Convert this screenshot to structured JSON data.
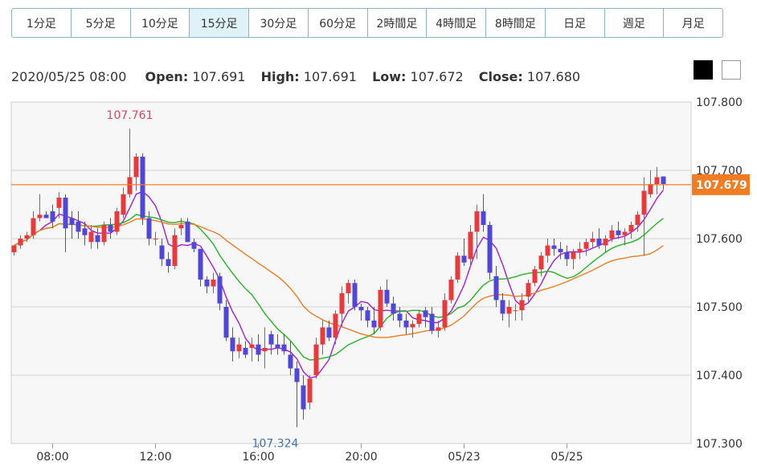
{
  "tabs": [
    {
      "label": "1分足"
    },
    {
      "label": "5分足"
    },
    {
      "label": "10分足"
    },
    {
      "label": "15分足",
      "active": true
    },
    {
      "label": "30分足"
    },
    {
      "label": "60分足"
    },
    {
      "label": "2時間足"
    },
    {
      "label": "4時間足"
    },
    {
      "label": "8時間足"
    },
    {
      "label": "日足"
    },
    {
      "label": "週足"
    },
    {
      "label": "月足"
    }
  ],
  "ohlc": {
    "datetime": "2020/05/25 08:00",
    "open_label": "Open:",
    "open": "107.691",
    "high_label": "High:",
    "high": "107.691",
    "low_label": "Low:",
    "low": "107.672",
    "close_label": "Close:",
    "close": "107.680"
  },
  "theme_buttons": [
    {
      "name": "dark",
      "color": "#000000"
    },
    {
      "name": "light",
      "color": "#ffffff"
    }
  ],
  "colors": {
    "up": "#e8393b",
    "down": "#5046d8",
    "ma_short": "#a21fd0",
    "ma_mid": "#27b327",
    "ma_long": "#f07c23",
    "current_price": "#f07c23",
    "background": "#f7f7f7",
    "grid": "#d0d0d0",
    "high_marker": "#d9465f",
    "low_marker": "#4a6fa8"
  },
  "chart_data": {
    "type": "candlestick",
    "ylim": [
      107.3,
      107.8
    ],
    "y_ticks": [
      "107.800",
      "107.700",
      "107.600",
      "107.500",
      "107.400",
      "107.300"
    ],
    "x_ticks": [
      {
        "label": "08:00",
        "index": 6
      },
      {
        "label": "12:00",
        "index": 22
      },
      {
        "label": "16:00",
        "index": 38
      },
      {
        "label": "20:00",
        "index": 54
      },
      {
        "label": "05/23",
        "index": 70
      },
      {
        "label": "05/25",
        "index": 86
      }
    ],
    "current_price": "107.679",
    "high_marker": {
      "label": "107.761",
      "index": 18,
      "value": 107.761
    },
    "low_marker": {
      "label": "107.324",
      "index": 40,
      "value": 107.324
    },
    "candles": [
      [
        107.58,
        107.59,
        107.575,
        107.59
      ],
      [
        107.59,
        107.605,
        107.585,
        107.6
      ],
      [
        107.6,
        107.61,
        107.595,
        107.605
      ],
      [
        107.605,
        107.64,
        107.6,
        107.63
      ],
      [
        107.63,
        107.665,
        107.625,
        107.635
      ],
      [
        107.635,
        107.64,
        107.63,
        107.63
      ],
      [
        107.64,
        107.65,
        107.615,
        107.625
      ],
      [
        107.645,
        107.668,
        107.63,
        107.66
      ],
      [
        107.66,
        107.665,
        107.58,
        107.615
      ],
      [
        107.63,
        107.64,
        107.6,
        107.62
      ],
      [
        107.625,
        107.64,
        107.6,
        107.61
      ],
      [
        107.615,
        107.625,
        107.59,
        107.605
      ],
      [
        107.595,
        107.62,
        107.585,
        107.61
      ],
      [
        107.605,
        107.615,
        107.585,
        107.595
      ],
      [
        107.595,
        107.625,
        107.59,
        107.62
      ],
      [
        107.62,
        107.63,
        107.6,
        107.61
      ],
      [
        107.61,
        107.645,
        107.605,
        107.64
      ],
      [
        107.635,
        107.675,
        107.63,
        107.665
      ],
      [
        107.665,
        107.761,
        107.66,
        107.69
      ],
      [
        107.69,
        107.725,
        107.67,
        107.72
      ],
      [
        107.72,
        107.725,
        107.62,
        107.63
      ],
      [
        107.63,
        107.64,
        107.59,
        107.6
      ],
      [
        107.6,
        107.61,
        107.59,
        107.6
      ],
      [
        107.59,
        107.6,
        107.56,
        107.57
      ],
      [
        107.57,
        107.58,
        107.55,
        107.56
      ],
      [
        107.56,
        107.615,
        107.555,
        107.605
      ],
      [
        107.615,
        107.63,
        107.605,
        107.62
      ],
      [
        107.625,
        107.63,
        107.595,
        107.595
      ],
      [
        107.595,
        107.6,
        107.58,
        107.585
      ],
      [
        107.585,
        107.58,
        107.53,
        107.54
      ],
      [
        107.54,
        107.545,
        107.52,
        107.53
      ],
      [
        107.53,
        107.55,
        107.52,
        107.54
      ],
      [
        107.545,
        107.55,
        107.495,
        107.505
      ],
      [
        107.5,
        107.51,
        107.45,
        107.455
      ],
      [
        107.455,
        107.47,
        107.42,
        107.435
      ],
      [
        107.435,
        107.455,
        107.425,
        107.445
      ],
      [
        107.44,
        107.45,
        107.425,
        107.43
      ],
      [
        107.44,
        107.455,
        107.42,
        107.445
      ],
      [
        107.445,
        107.46,
        107.42,
        107.43
      ],
      [
        107.435,
        107.47,
        107.41,
        107.44
      ],
      [
        107.46,
        107.465,
        107.43,
        107.445
      ],
      [
        107.445,
        107.46,
        107.43,
        107.44
      ],
      [
        107.445,
        107.46,
        107.43,
        107.435
      ],
      [
        107.43,
        107.45,
        107.4,
        107.41
      ],
      [
        107.41,
        107.42,
        107.324,
        107.39
      ],
      [
        107.385,
        107.4,
        107.335,
        107.35
      ],
      [
        107.36,
        107.4,
        107.35,
        107.395
      ],
      [
        107.4,
        107.455,
        107.395,
        107.445
      ]
    ]
  }
}
